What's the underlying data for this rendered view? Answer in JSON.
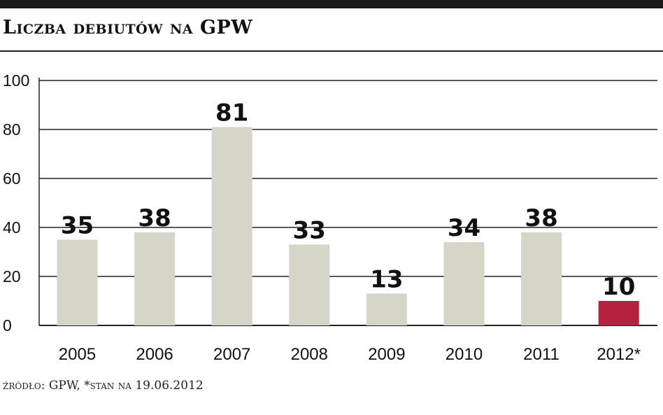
{
  "title": "Liczba debiutów na GPW",
  "source": "źródło: GPW, *stan na 19.06.2012",
  "colors": {
    "bar": "#d5d5c8",
    "highlight": "#b5223f",
    "grid": "#222222",
    "text": "#111111"
  },
  "chart_data": {
    "type": "bar",
    "title": "Liczba debiutów na GPW",
    "categories": [
      "2005",
      "2006",
      "2007",
      "2008",
      "2009",
      "2010",
      "2011",
      "2012*"
    ],
    "values": [
      35,
      38,
      81,
      33,
      13,
      34,
      38,
      10
    ],
    "highlight_index": 7,
    "ylim": [
      0,
      100
    ],
    "yticks": [
      0,
      20,
      40,
      60,
      80,
      100
    ],
    "grid": true,
    "data_labels": true
  }
}
